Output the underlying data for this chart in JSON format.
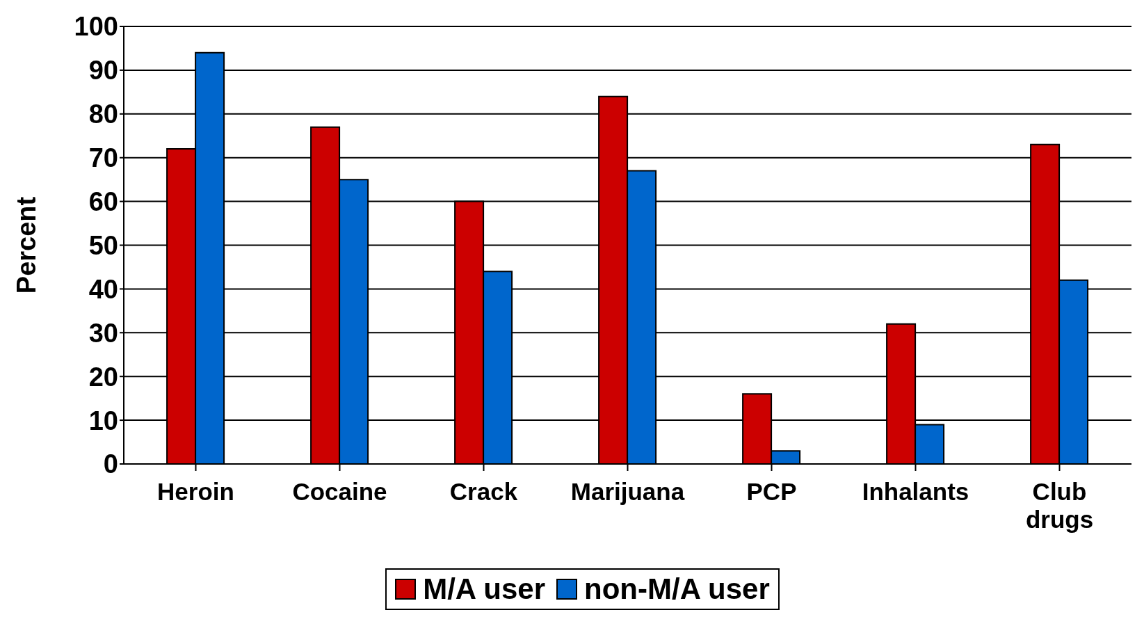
{
  "chart_data": {
    "type": "bar",
    "ylabel": "Percent",
    "categories": [
      "Heroin",
      "Cocaine",
      "Crack",
      "Marijuana",
      "PCP",
      "Inhalants",
      "Club drugs"
    ],
    "series": [
      {
        "name": "M/A user",
        "color": "#cc0000",
        "values": [
          72,
          77,
          60,
          84,
          16,
          32,
          73
        ]
      },
      {
        "name": "non-M/A user",
        "color": "#0066cc",
        "values": [
          94,
          65,
          44,
          67,
          3,
          9,
          42
        ]
      }
    ],
    "ylim": [
      0,
      100
    ],
    "yticks": [
      0,
      10,
      20,
      30,
      40,
      50,
      60,
      70,
      80,
      90,
      100
    ],
    "grid": "y",
    "legend": "bottom"
  }
}
